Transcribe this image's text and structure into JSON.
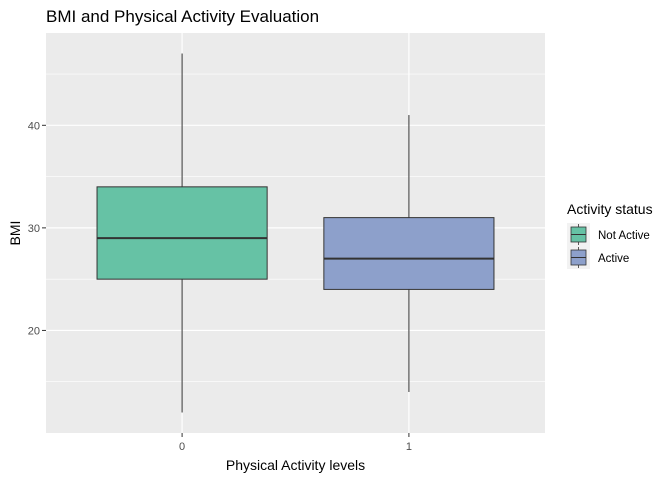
{
  "chart_data": {
    "type": "boxplot",
    "title": "BMI and Physical Activity Evaluation",
    "xlabel": "Physical Activity levels",
    "ylabel": "BMI",
    "categories": [
      "0",
      "1"
    ],
    "ylim": [
      10,
      49
    ],
    "yticks": [
      20,
      30,
      40
    ],
    "grid": true,
    "legend": {
      "title": "Activity status",
      "placement": "right",
      "entries": [
        {
          "label": "Not Active",
          "color": "#66c2a5"
        },
        {
          "label": "Active",
          "color": "#8da0cb"
        }
      ]
    },
    "series": [
      {
        "category": "0",
        "min": 12,
        "q1": 25,
        "median": 29,
        "q3": 34,
        "max": 47,
        "color": "#66c2a5"
      },
      {
        "category": "1",
        "min": 14,
        "q1": 24,
        "median": 27,
        "q3": 31,
        "max": 41,
        "color": "#8da0cb"
      }
    ]
  }
}
